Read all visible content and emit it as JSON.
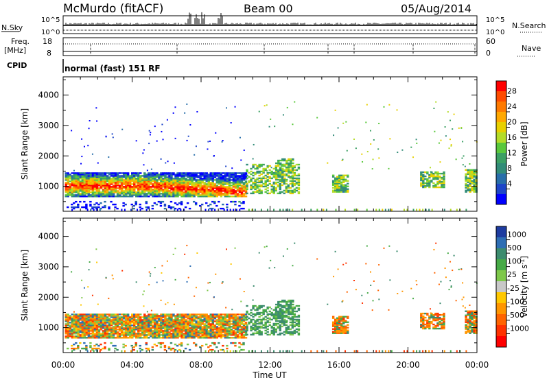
{
  "header": {
    "station": "McMurdo (fitACF)",
    "beam": "Beam 00",
    "date": "05/Aug/2014"
  },
  "top_panels": {
    "nsky_label": "N.Sky",
    "nsky_ticks": [
      "10^5",
      "10^0"
    ],
    "nsearch_label": "N.Search",
    "nsearch_ticks": [
      "10^5",
      "10^0"
    ],
    "freq_label_1": "Freq.",
    "freq_label_2": "[MHz]",
    "freq_ticks": [
      "18",
      "8"
    ],
    "nave_label": "Nave",
    "nave_ticks": [
      "60",
      "0"
    ],
    "cpid_label": "CPID",
    "cpid_text": "normal (fast) 151 RF"
  },
  "chart_data": [
    {
      "type": "heatmap",
      "name": "power",
      "ylabel": "Slant Range [km]",
      "xlabel": "",
      "x_ticks": [
        "00:00",
        "04:00",
        "08:00",
        "12:00",
        "16:00",
        "20:00",
        "00:00"
      ],
      "y_ticks": [
        1000,
        2000,
        3000,
        4000
      ],
      "ylim": [
        180,
        4600
      ],
      "xlim_hours": [
        0,
        24
      ],
      "colorbar_label": "Power [dB]",
      "colorbar_ticks": [
        "28",
        "24",
        "20",
        "16",
        "12",
        "8",
        "4"
      ],
      "colorbar_colors": [
        "#ff0000",
        "#ff4c00",
        "#ff7a00",
        "#ffa800",
        "#e8d000",
        "#b4dc28",
        "#5ac83c",
        "#3ca064",
        "#328c78",
        "#286eaa",
        "#1e46c8",
        "#0000ff"
      ]
    },
    {
      "type": "heatmap",
      "name": "velocity",
      "ylabel": "Slant Range [km]",
      "xlabel": "Time UT",
      "x_ticks": [
        "00:00",
        "04:00",
        "08:00",
        "12:00",
        "16:00",
        "20:00",
        "00:00"
      ],
      "y_ticks": [
        1000,
        2000,
        3000,
        4000
      ],
      "ylim": [
        180,
        4600
      ],
      "xlim_hours": [
        0,
        24
      ],
      "colorbar_label": "Velocity [m s^-1]",
      "colorbar_ticks": [
        "1000",
        "500",
        "100",
        "25",
        "-25",
        "-100",
        "-500",
        "-1000"
      ],
      "colorbar_colors": [
        "#1e3ca0",
        "#2e6eb4",
        "#3c8c6e",
        "#46aa46",
        "#7ec84a",
        "#c8c8c8",
        "#ffc800",
        "#ff9600",
        "#ff6400",
        "#ff3200",
        "#ff0000"
      ]
    }
  ]
}
